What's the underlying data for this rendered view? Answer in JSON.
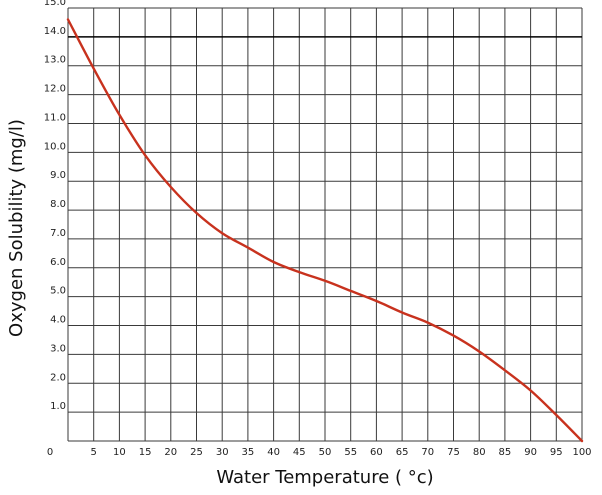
{
  "chart_data": {
    "type": "line",
    "title": "",
    "xlabel": "Water Temperature ( °c)",
    "ylabel": "Oxygen Solubility (mg/l)",
    "xlim": [
      0,
      100
    ],
    "ylim": [
      0,
      15
    ],
    "x_ticks": [
      "0",
      "5",
      "10",
      "15",
      "20",
      "25",
      "30",
      "35",
      "40",
      "45",
      "50",
      "55",
      "60",
      "65",
      "70",
      "75",
      "80",
      "85",
      "90",
      "95",
      "100"
    ],
    "y_ticks": [
      "1.0",
      "2.0",
      "3.0",
      "4.0",
      "5.0",
      "6.0",
      "7.0",
      "8.0",
      "9.0",
      "10.0",
      "11.0",
      "12.0",
      "13.0",
      "14.0",
      "15.0"
    ],
    "grid": true,
    "highlight_gridline_y": 14,
    "line_color": "#c8321e",
    "series": [
      {
        "x": [
          0,
          5,
          10,
          15,
          20,
          25,
          30,
          35,
          40,
          45,
          50,
          55,
          60,
          65,
          70,
          75,
          80,
          85,
          90,
          95,
          100
        ],
        "values": [
          14.6,
          12.9,
          11.3,
          9.9,
          8.8,
          7.9,
          7.2,
          6.7,
          6.2,
          5.85,
          5.55,
          5.2,
          4.85,
          4.45,
          4.1,
          3.65,
          3.1,
          2.45,
          1.75,
          0.9,
          0.0
        ]
      }
    ]
  }
}
